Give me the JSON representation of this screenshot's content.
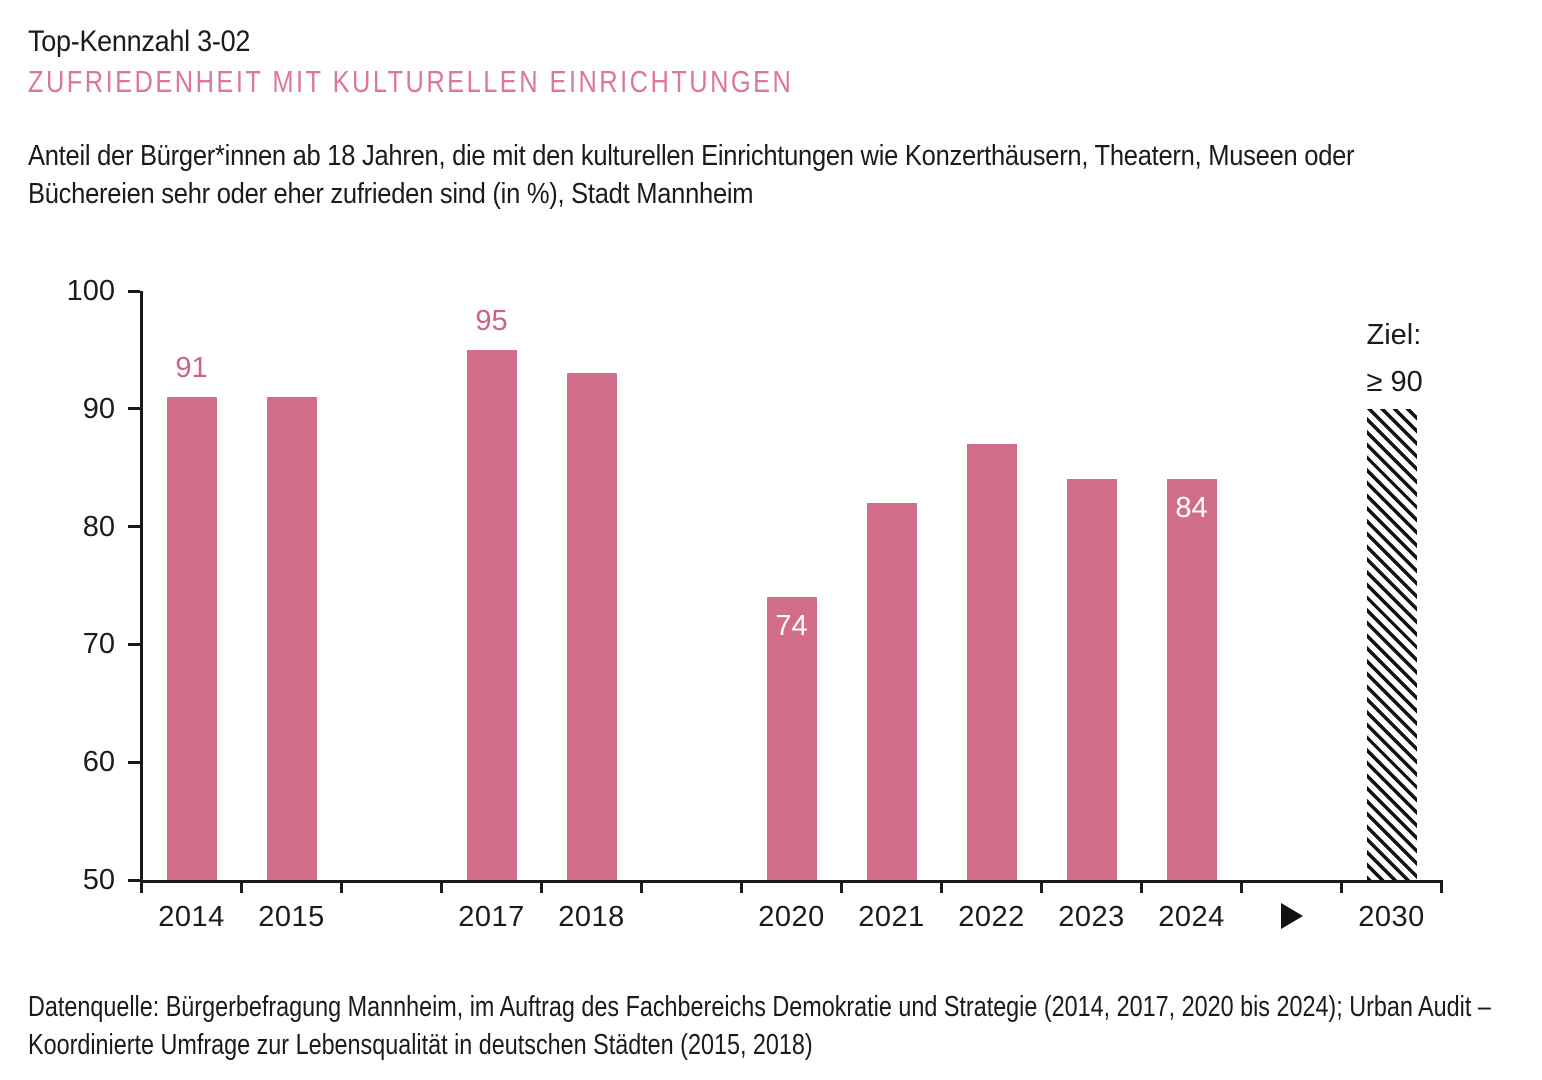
{
  "header": {
    "kennzahl": "Top-Kennzahl 3-02",
    "title": "ZUFRIEDENHEIT MIT KULTURELLEN EINRICHTUNGEN",
    "description_lines": [
      "Anteil der Bürger*innen ab 18 Jahren, die mit den kulturellen Einrichtungen wie Konzerthäusern, Theatern, Museen oder",
      "Büchereien sehr oder eher zufrieden sind (in %), Stadt Mannheim"
    ]
  },
  "chart_data": {
    "type": "bar",
    "title": "",
    "xlabel": "",
    "ylabel": "",
    "unit": "%",
    "grid": false,
    "legend": null,
    "ylim": [
      50,
      100
    ],
    "yticks": [
      50,
      60,
      70,
      80,
      90,
      100
    ],
    "categories": [
      "2014",
      "2015",
      "",
      "2017",
      "2018",
      "",
      "2020",
      "2021",
      "2022",
      "2023",
      "2024",
      "▶",
      "2030"
    ],
    "values": [
      91,
      91,
      null,
      95,
      93,
      null,
      74,
      82,
      87,
      84,
      84,
      null,
      null
    ],
    "annotations": [
      {
        "index": 0,
        "text": "91",
        "placement": "above"
      },
      {
        "index": 3,
        "text": "95",
        "placement": "above"
      },
      {
        "index": 6,
        "text": "74",
        "placement": "inside"
      },
      {
        "index": 10,
        "text": "84",
        "placement": "inside"
      }
    ],
    "target": {
      "index": 12,
      "category": "2030",
      "value": 90,
      "pattern": "diagonal-hatch",
      "label_lines": [
        "Ziel:",
        "≥ 90"
      ]
    }
  },
  "footer": {
    "source_lines": [
      "Datenquelle: Bürgerbefragung Mannheim, im Auftrag des Fachbereichs Demokratie und Strategie (2014, 2017, 2020 bis 2024); Urban Audit –",
      "Koordinierte Umfrage zur Lebensqualität in deutschen Städten (2015, 2018)"
    ]
  },
  "colors": {
    "bar": "#d16d89",
    "title_pink": "#de7694",
    "annotation_pink": "#d06384",
    "axis": "#1a1a1a",
    "hatch": "#111111",
    "text": "#1b1b1b"
  }
}
